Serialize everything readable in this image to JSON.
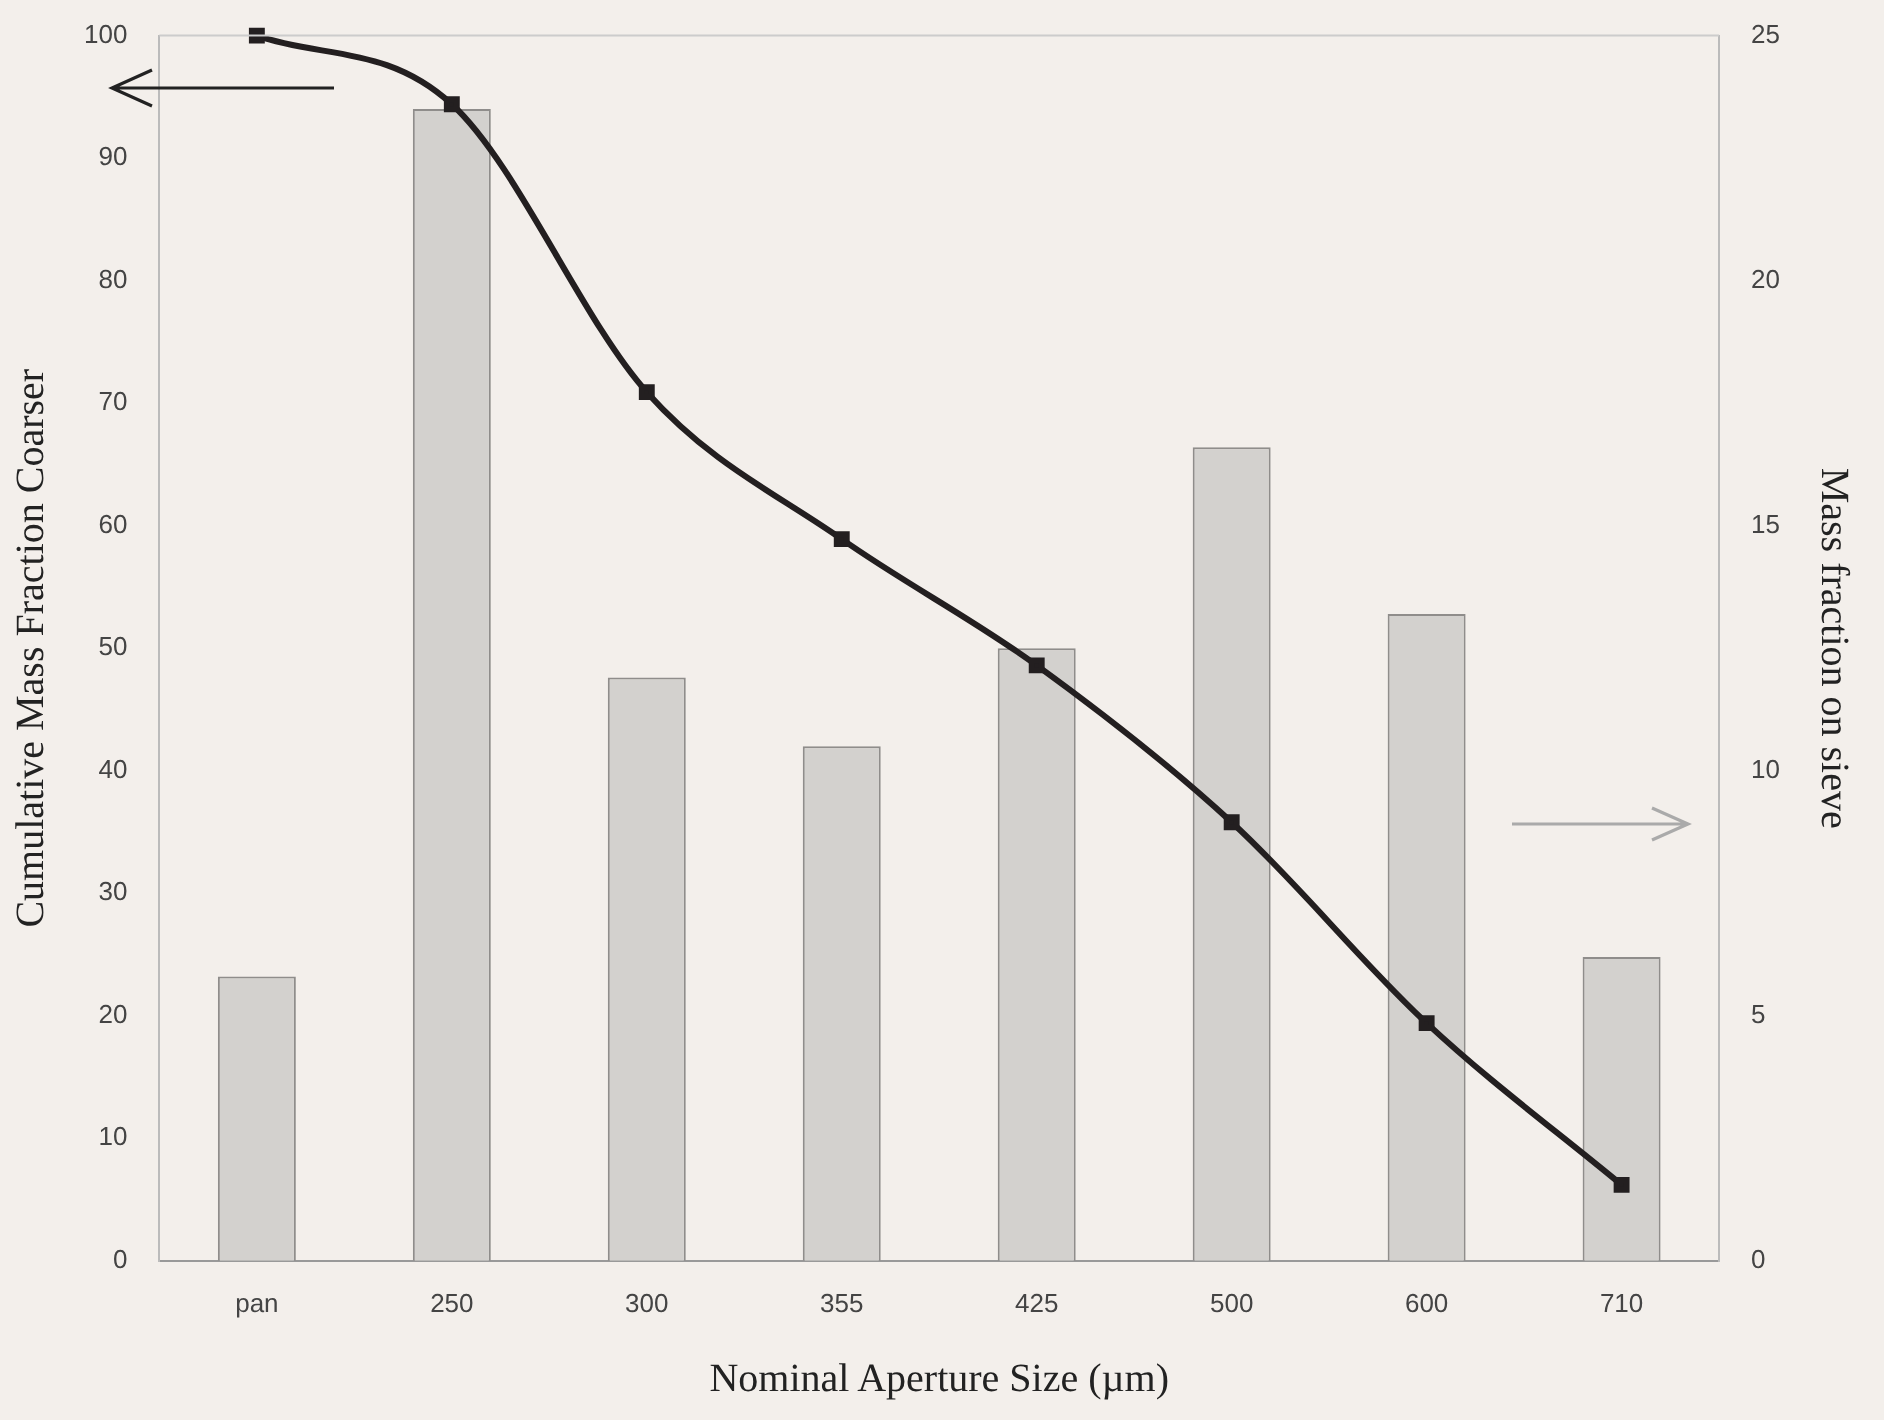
{
  "chart_data": {
    "type": "bar",
    "xlabel": "Nominal Aperture Size (µm)",
    "ylabel": "Cumulative Mass Fraction Coarser",
    "y2label": "Mass fraction on sieve",
    "categories": [
      "pan",
      "250",
      "300",
      "355",
      "425",
      "500",
      "600",
      "710"
    ],
    "series": [
      {
        "axis": "y2",
        "color": "#d3d1ce",
        "values": [
          5.8,
          23.5,
          11.9,
          10.5,
          12.5,
          16.6,
          13.2,
          6.2
        ]
      },
      {
        "type": "line",
        "axis": "y",
        "color": "#231f20",
        "marker": "square",
        "values": [
          100,
          94.4,
          70.9,
          58.9,
          48.6,
          35.8,
          19.4,
          6.2
        ]
      }
    ],
    "ylim": [
      0,
      100
    ],
    "yticks": [
      0,
      10,
      20,
      30,
      40,
      50,
      60,
      70,
      80,
      90,
      100
    ],
    "y2lim": [
      0,
      25
    ],
    "y2ticks": [
      0,
      5,
      10,
      15,
      20,
      25
    ],
    "grid": false,
    "legend": false
  }
}
